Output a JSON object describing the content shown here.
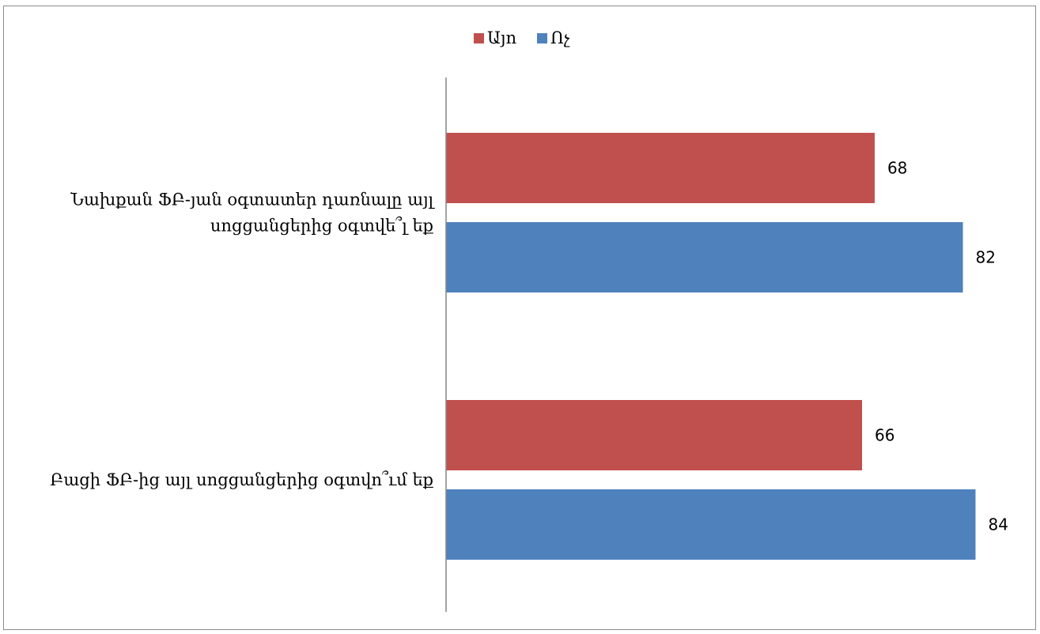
{
  "chart_data": {
    "type": "bar",
    "orientation": "horizontal",
    "categories": [
      [
        "Նախքան ՖԲ-յան օգտատեր դառնալը այլ",
        "սոցցանցերից օգտվե՞լ եք"
      ],
      [
        "Բացի ՖԲ-ից այլ սոցցանցերից օգտվո՞ւմ եք"
      ]
    ],
    "series": [
      {
        "name": "Այո",
        "color": "#C0504D",
        "values": [
          68,
          66
        ]
      },
      {
        "name": "Ոչ",
        "color": "#4F81BD",
        "values": [
          82,
          84
        ]
      }
    ],
    "xlim": [
      0,
      100
    ],
    "grid": false,
    "legend_position": "top",
    "data_labels": true,
    "xlabel": "",
    "ylabel": ""
  }
}
